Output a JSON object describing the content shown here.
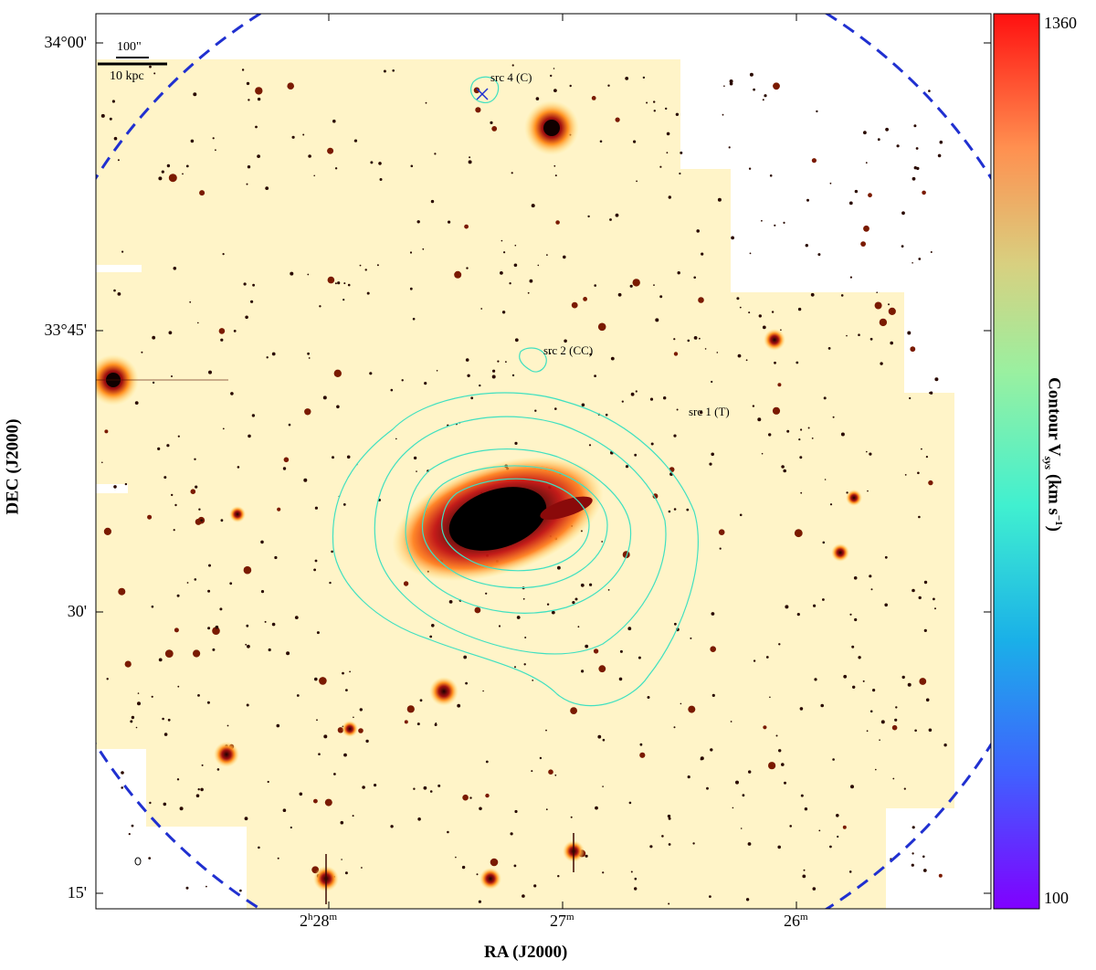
{
  "figure": {
    "xlabel": "RA (J2000)",
    "ylabel": "DEC (J2000)",
    "x_ticks": [
      {
        "label": "2",
        "sup": "h",
        "main": "28",
        "sup2": "m"
      },
      {
        "label": "27",
        "sup": "m"
      },
      {
        "label": "26",
        "sup": "m"
      }
    ],
    "y_ticks": [
      "34°00'",
      "33°45'",
      "30'",
      "15'"
    ],
    "scalebar": {
      "angular": "100\"",
      "physical": "10 kpc"
    },
    "sources": [
      {
        "label": "src 4 (C)"
      },
      {
        "label": "src 2 (CC)"
      },
      {
        "label": "src 1 (T)"
      }
    ]
  },
  "colorbar": {
    "label": "Contour V",
    "label_sub": "sys",
    "label_units": "(km s",
    "label_units_sup": "−1",
    "label_close": ")",
    "max_label": "1360",
    "min_label": "100",
    "range": [
      100,
      1360
    ],
    "colormap": "rainbow"
  },
  "colors": {
    "beam_circle": "#2030d0",
    "contour": "#40e0c0",
    "background_map": "#fff6d0"
  }
}
